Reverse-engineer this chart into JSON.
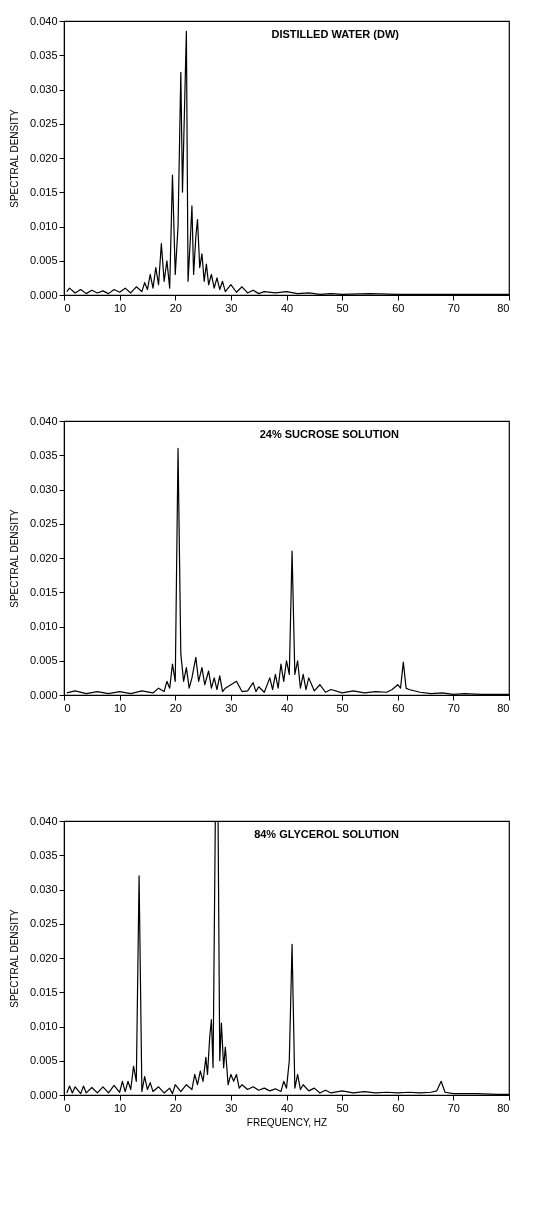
{
  "chart_data": [
    {
      "type": "line",
      "title": "DISTILLED WATER (DW)",
      "ylabel": "SPECTRAL DENSITY",
      "xlim": [
        0,
        80
      ],
      "ylim": [
        0,
        0.04
      ],
      "xticks": [
        0,
        10,
        20,
        30,
        40,
        50,
        60,
        70,
        80
      ],
      "yticks": [
        {
          "value": 0,
          "label": "0.000"
        },
        {
          "value": 0.005,
          "label": "0.005"
        },
        {
          "value": 0.01,
          "label": "0.010"
        },
        {
          "value": 0.015,
          "label": "0.015"
        },
        {
          "value": 0.02,
          "label": "0.020"
        },
        {
          "value": 0.025,
          "label": "0.025"
        },
        {
          "value": 0.03,
          "label": "0.030"
        },
        {
          "value": 0.035,
          "label": "0.035"
        },
        {
          "value": 0.04,
          "label": "0.040"
        }
      ],
      "grid": false,
      "series": [
        {
          "color": "#000000",
          "x": [
            0.5,
            1,
            2,
            3,
            4,
            5,
            6,
            7,
            8,
            9,
            10,
            11,
            12,
            13,
            14,
            14.5,
            15,
            15.5,
            16,
            16.5,
            17,
            17.5,
            18,
            18.5,
            19,
            19.5,
            20,
            20.5,
            21,
            21.3,
            21.6,
            22,
            22.3,
            22.7,
            23,
            23.3,
            23.7,
            24,
            24.4,
            24.8,
            25.2,
            25.6,
            26,
            26.5,
            27,
            27.5,
            28,
            28.5,
            29,
            30,
            31,
            32,
            33,
            34,
            35,
            36,
            38,
            40,
            42,
            44,
            46,
            48,
            50,
            55,
            60,
            65,
            70,
            75,
            80
          ],
          "values": [
            0.0005,
            0.001,
            0.0003,
            0.0008,
            0.0002,
            0.0007,
            0.0003,
            0.0006,
            0.0002,
            0.0008,
            0.0004,
            0.001,
            0.0003,
            0.0012,
            0.0005,
            0.0018,
            0.0008,
            0.003,
            0.001,
            0.004,
            0.0015,
            0.0075,
            0.002,
            0.005,
            0.001,
            0.0175,
            0.003,
            0.01,
            0.0325,
            0.015,
            0.025,
            0.0385,
            0.002,
            0.008,
            0.013,
            0.003,
            0.0085,
            0.011,
            0.004,
            0.006,
            0.002,
            0.0045,
            0.0015,
            0.003,
            0.001,
            0.0025,
            0.0008,
            0.002,
            0.0005,
            0.0015,
            0.0004,
            0.0012,
            0.0003,
            0.0007,
            0.0002,
            0.0005,
            0.0003,
            0.0005,
            0.0002,
            0.0003,
            0.0001,
            0.0002,
            0.0001,
            0.0002,
            0.0001,
            0.0001,
            0.0001,
            0.0001,
            0.0001
          ]
        }
      ]
    },
    {
      "type": "line",
      "title": "24% SUCROSE SOLUTION",
      "ylabel": "SPECTRAL DENSITY",
      "xlim": [
        0,
        80
      ],
      "ylim": [
        0,
        0.04
      ],
      "xticks": [
        0,
        10,
        20,
        30,
        40,
        50,
        60,
        70,
        80
      ],
      "yticks": [
        {
          "value": 0,
          "label": "0.000"
        },
        {
          "value": 0.005,
          "label": "0.005"
        },
        {
          "value": 0.01,
          "label": "0.010"
        },
        {
          "value": 0.015,
          "label": "0.015"
        },
        {
          "value": 0.02,
          "label": "0.020"
        },
        {
          "value": 0.025,
          "label": "0.025"
        },
        {
          "value": 0.03,
          "label": "0.030"
        },
        {
          "value": 0.035,
          "label": "0.035"
        },
        {
          "value": 0.04,
          "label": "0.040"
        }
      ],
      "grid": false,
      "series": [
        {
          "color": "#000000",
          "x": [
            0.5,
            2,
            4,
            6,
            8,
            10,
            12,
            14,
            16,
            17,
            18,
            18.5,
            19,
            19.5,
            20,
            20.5,
            21,
            21.5,
            22,
            22.5,
            23,
            23.7,
            24.2,
            24.8,
            25.3,
            26,
            26.5,
            27,
            27.5,
            28,
            28.5,
            29,
            30,
            31,
            32,
            33,
            34,
            34.5,
            35,
            36,
            37,
            37.5,
            38,
            38.5,
            39,
            39.5,
            40,
            40.5,
            41,
            41.5,
            42,
            42.5,
            43,
            43.5,
            44,
            45,
            46,
            47,
            48,
            50,
            52,
            54,
            56,
            58,
            59,
            60,
            60.5,
            61,
            61.5,
            62,
            64,
            66,
            68,
            70,
            72,
            75,
            80
          ],
          "values": [
            0.0003,
            0.0006,
            0.0002,
            0.0005,
            0.0002,
            0.0005,
            0.0002,
            0.0006,
            0.0003,
            0.001,
            0.0005,
            0.002,
            0.001,
            0.0045,
            0.002,
            0.036,
            0.006,
            0.002,
            0.004,
            0.001,
            0.0025,
            0.0055,
            0.002,
            0.004,
            0.0015,
            0.0035,
            0.001,
            0.0025,
            0.0008,
            0.0028,
            0.0005,
            0.001,
            0.0015,
            0.002,
            0.0005,
            0.0006,
            0.0018,
            0.0005,
            0.0012,
            0.0004,
            0.0025,
            0.0008,
            0.003,
            0.001,
            0.0045,
            0.002,
            0.005,
            0.003,
            0.021,
            0.003,
            0.005,
            0.001,
            0.003,
            0.0008,
            0.0025,
            0.0006,
            0.0015,
            0.0004,
            0.0008,
            0.0003,
            0.0006,
            0.0003,
            0.0005,
            0.0004,
            0.0008,
            0.0015,
            0.001,
            0.0048,
            0.001,
            0.0008,
            0.0004,
            0.0002,
            0.0003,
            0.0001,
            0.0002,
            0.0001,
            0.0001
          ]
        }
      ]
    },
    {
      "type": "line",
      "title": "84% GLYCEROL SOLUTION",
      "xlabel": "FREQUENCY, HZ",
      "ylabel": "SPECTRAL DENSITY",
      "xlim": [
        0,
        80
      ],
      "ylim": [
        0,
        0.04
      ],
      "xticks": [
        0,
        10,
        20,
        30,
        40,
        50,
        60,
        70,
        80
      ],
      "yticks": [
        {
          "value": 0,
          "label": "0.000"
        },
        {
          "value": 0.005,
          "label": "0.005"
        },
        {
          "value": 0.01,
          "label": "0.010"
        },
        {
          "value": 0.015,
          "label": "0.015"
        },
        {
          "value": 0.02,
          "label": "0.020"
        },
        {
          "value": 0.025,
          "label": "0.025"
        },
        {
          "value": 0.03,
          "label": "0.030"
        },
        {
          "value": 0.035,
          "label": "0.035"
        },
        {
          "value": 0.04,
          "label": "0.040"
        }
      ],
      "grid": false,
      "series": [
        {
          "color": "#000000",
          "x": [
            0.5,
            1,
            1.5,
            2,
            3,
            3.5,
            4,
            5,
            6,
            7,
            8,
            9,
            10,
            10.5,
            11,
            11.5,
            12,
            12.5,
            13,
            13.5,
            14,
            14.5,
            15,
            15.5,
            16,
            17,
            18,
            19,
            19.5,
            20,
            21,
            22,
            23,
            23.5,
            24,
            24.5,
            25,
            25.5,
            25.8,
            26.2,
            26.5,
            26.8,
            27.2,
            27.7,
            28,
            28.3,
            28.7,
            29,
            29.5,
            30,
            30.5,
            31,
            31.5,
            32,
            33,
            34,
            35,
            36,
            37,
            38,
            39,
            39.5,
            40,
            40.5,
            41,
            41.5,
            42,
            42.5,
            43,
            44,
            45,
            46,
            47,
            48,
            50,
            52,
            54,
            56,
            58,
            60,
            62,
            64,
            66,
            67,
            67.8,
            68.5,
            70,
            74,
            78,
            80
          ],
          "values": [
            0.0003,
            0.0013,
            0.0003,
            0.0012,
            0.0002,
            0.0013,
            0.0003,
            0.0011,
            0.0003,
            0.0012,
            0.0003,
            0.0014,
            0.0004,
            0.002,
            0.0005,
            0.002,
            0.0008,
            0.0042,
            0.002,
            0.032,
            0.0005,
            0.0027,
            0.0008,
            0.0018,
            0.0005,
            0.0012,
            0.0003,
            0.001,
            0.0002,
            0.0015,
            0.0005,
            0.0015,
            0.0008,
            0.003,
            0.0015,
            0.0035,
            0.002,
            0.0055,
            0.003,
            0.0085,
            0.011,
            0.004,
            0.04,
            0.04,
            0.005,
            0.0105,
            0.004,
            0.007,
            0.0015,
            0.003,
            0.002,
            0.003,
            0.001,
            0.0015,
            0.0008,
            0.0012,
            0.0007,
            0.001,
            0.0006,
            0.0009,
            0.0005,
            0.002,
            0.001,
            0.005,
            0.022,
            0.001,
            0.003,
            0.0008,
            0.0015,
            0.0006,
            0.001,
            0.0003,
            0.0007,
            0.0003,
            0.0006,
            0.0003,
            0.0005,
            0.0003,
            0.0004,
            0.0003,
            0.0004,
            0.0003,
            0.0004,
            0.0006,
            0.002,
            0.0004,
            0.0002,
            0.0002,
            0.0001,
            0.0001
          ]
        }
      ]
    }
  ]
}
